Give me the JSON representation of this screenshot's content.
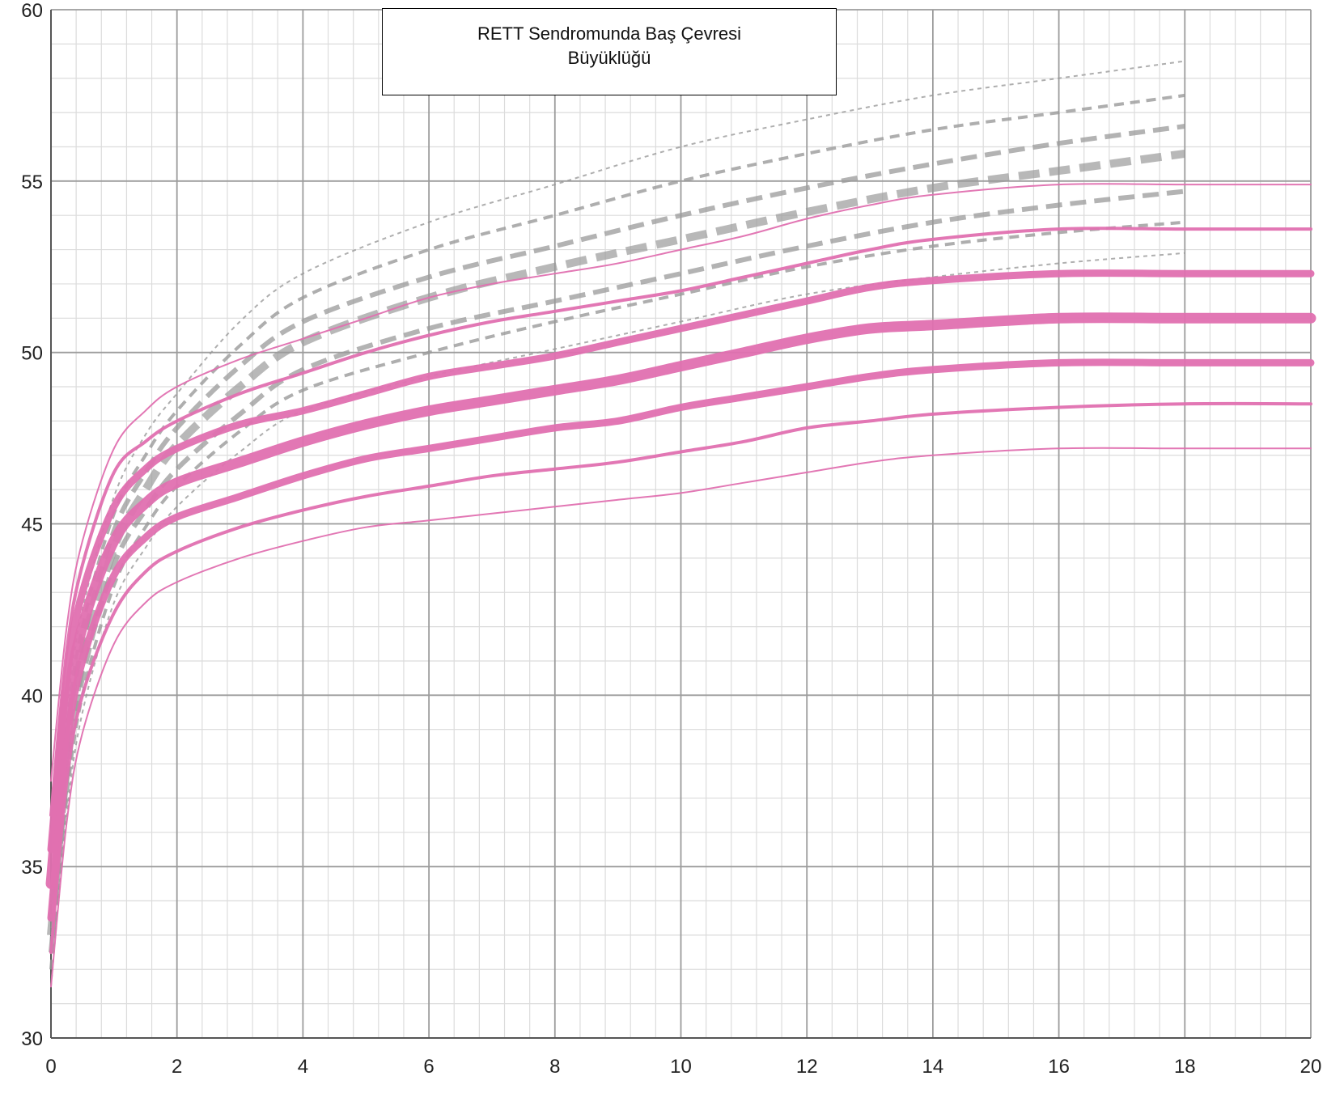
{
  "chart_data": {
    "type": "line",
    "title": "RETT Sendromunda Baş Çevresi\nBüyüklüğü",
    "xlabel": "",
    "ylabel": "",
    "xlim": [
      0,
      20
    ],
    "ylim": [
      30,
      60
    ],
    "x_ticks": [
      0,
      2,
      4,
      6,
      8,
      10,
      12,
      14,
      16,
      18,
      20
    ],
    "y_ticks": [
      30,
      35,
      40,
      45,
      50,
      55,
      60
    ],
    "grid": true,
    "legend": "none",
    "colors": {
      "rett": "#e070b0",
      "normal": "#9a9a9a",
      "grid_major": "#9c9c9c",
      "grid_minor": "#dcdcdc"
    },
    "series": [
      {
        "group": "normal",
        "width": 2,
        "dash": "5,5",
        "opacity": 0.8,
        "points": [
          [
            0,
            34.5
          ],
          [
            0.25,
            39.5
          ],
          [
            0.5,
            42.5
          ],
          [
            1,
            45.8
          ],
          [
            1.5,
            47.6
          ],
          [
            2,
            48.8
          ],
          [
            3,
            50.9
          ],
          [
            4,
            52.3
          ],
          [
            6,
            53.8
          ],
          [
            8,
            54.9
          ],
          [
            10,
            56
          ],
          [
            12,
            56.8
          ],
          [
            14,
            57.5
          ],
          [
            16,
            58
          ],
          [
            18,
            58.5
          ]
        ]
      },
      {
        "group": "normal",
        "width": 4,
        "dash": "12,8",
        "opacity": 0.8,
        "points": [
          [
            0,
            34
          ],
          [
            0.25,
            39
          ],
          [
            0.5,
            42
          ],
          [
            1,
            45.3
          ],
          [
            1.5,
            47
          ],
          [
            2,
            48.3
          ],
          [
            3,
            50.2
          ],
          [
            4,
            51.6
          ],
          [
            6,
            53
          ],
          [
            8,
            54
          ],
          [
            10,
            55
          ],
          [
            12,
            55.8
          ],
          [
            14,
            56.5
          ],
          [
            16,
            57
          ],
          [
            18,
            57.5
          ]
        ]
      },
      {
        "group": "normal",
        "width": 6,
        "dash": "20,10",
        "opacity": 0.75,
        "points": [
          [
            0,
            33.5
          ],
          [
            0.25,
            38.5
          ],
          [
            0.5,
            41.5
          ],
          [
            1,
            44.8
          ],
          [
            1.5,
            46.5
          ],
          [
            2,
            47.8
          ],
          [
            3,
            49.6
          ],
          [
            4,
            50.9
          ],
          [
            6,
            52.2
          ],
          [
            8,
            53.1
          ],
          [
            10,
            54
          ],
          [
            12,
            54.8
          ],
          [
            14,
            55.5
          ],
          [
            16,
            56.1
          ],
          [
            18,
            56.6
          ]
        ]
      },
      {
        "group": "normal",
        "width": 10,
        "dash": "26,12",
        "opacity": 0.7,
        "points": [
          [
            0,
            33
          ],
          [
            0.25,
            38
          ],
          [
            0.5,
            41
          ],
          [
            1,
            44.3
          ],
          [
            1.5,
            46
          ],
          [
            2,
            47.3
          ],
          [
            3,
            49
          ],
          [
            4,
            50.3
          ],
          [
            6,
            51.6
          ],
          [
            8,
            52.5
          ],
          [
            10,
            53.3
          ],
          [
            12,
            54.1
          ],
          [
            14,
            54.8
          ],
          [
            16,
            55.3
          ],
          [
            18,
            55.8
          ]
        ]
      },
      {
        "group": "normal",
        "width": 6,
        "dash": "20,10",
        "opacity": 0.75,
        "points": [
          [
            0,
            32.5
          ],
          [
            0.25,
            37.5
          ],
          [
            0.5,
            40.5
          ],
          [
            1,
            43.8
          ],
          [
            1.5,
            45.4
          ],
          [
            2,
            46.6
          ],
          [
            3,
            48.2
          ],
          [
            4,
            49.5
          ],
          [
            6,
            50.7
          ],
          [
            8,
            51.5
          ],
          [
            10,
            52.3
          ],
          [
            12,
            53.1
          ],
          [
            14,
            53.8
          ],
          [
            16,
            54.3
          ],
          [
            18,
            54.7
          ]
        ]
      },
      {
        "group": "normal",
        "width": 4,
        "dash": "12,8",
        "opacity": 0.8,
        "points": [
          [
            0,
            32
          ],
          [
            0.25,
            37
          ],
          [
            0.5,
            40
          ],
          [
            1,
            43.2
          ],
          [
            1.5,
            44.9
          ],
          [
            2,
            46.1
          ],
          [
            3,
            47.7
          ],
          [
            4,
            48.9
          ],
          [
            6,
            50
          ],
          [
            8,
            50.9
          ],
          [
            10,
            51.7
          ],
          [
            12,
            52.5
          ],
          [
            14,
            53.1
          ],
          [
            16,
            53.5
          ],
          [
            18,
            53.8
          ]
        ]
      },
      {
        "group": "normal",
        "width": 2,
        "dash": "5,5",
        "opacity": 0.8,
        "points": [
          [
            0,
            31.5
          ],
          [
            0.25,
            36.5
          ],
          [
            0.5,
            39.5
          ],
          [
            1,
            42.7
          ],
          [
            1.5,
            44.3
          ],
          [
            2,
            45.5
          ],
          [
            3,
            47.1
          ],
          [
            4,
            48.3
          ],
          [
            6,
            49.3
          ],
          [
            8,
            50.1
          ],
          [
            10,
            50.9
          ],
          [
            12,
            51.7
          ],
          [
            14,
            52.2
          ],
          [
            16,
            52.6
          ],
          [
            18,
            52.9
          ]
        ]
      },
      {
        "group": "rett",
        "width": 2,
        "opacity": 0.95,
        "points": [
          [
            0,
            37.5
          ],
          [
            0.25,
            42
          ],
          [
            0.5,
            44.5
          ],
          [
            1,
            47.2
          ],
          [
            1.5,
            48.3
          ],
          [
            2,
            49
          ],
          [
            3,
            49.8
          ],
          [
            4,
            50.4
          ],
          [
            5,
            51
          ],
          [
            6,
            51.6
          ],
          [
            7,
            52
          ],
          [
            8,
            52.3
          ],
          [
            9,
            52.6
          ],
          [
            10,
            53
          ],
          [
            11,
            53.4
          ],
          [
            12,
            53.9
          ],
          [
            13,
            54.3
          ],
          [
            14,
            54.6
          ],
          [
            16,
            54.9
          ],
          [
            18,
            54.9
          ],
          [
            20,
            54.9
          ]
        ]
      },
      {
        "group": "rett",
        "width": 4,
        "opacity": 0.95,
        "points": [
          [
            0,
            36.5
          ],
          [
            0.25,
            41.3
          ],
          [
            0.5,
            43.8
          ],
          [
            1,
            46.5
          ],
          [
            1.5,
            47.4
          ],
          [
            2,
            48
          ],
          [
            3,
            48.8
          ],
          [
            4,
            49.4
          ],
          [
            5,
            50
          ],
          [
            6,
            50.5
          ],
          [
            7,
            50.9
          ],
          [
            8,
            51.2
          ],
          [
            9,
            51.5
          ],
          [
            10,
            51.8
          ],
          [
            11,
            52.2
          ],
          [
            12,
            52.6
          ],
          [
            13,
            53
          ],
          [
            14,
            53.3
          ],
          [
            16,
            53.6
          ],
          [
            18,
            53.6
          ],
          [
            20,
            53.6
          ]
        ]
      },
      {
        "group": "rett",
        "width": 9,
        "opacity": 0.95,
        "points": [
          [
            0,
            35.5
          ],
          [
            0.25,
            40.5
          ],
          [
            0.5,
            43
          ],
          [
            1,
            45.5
          ],
          [
            1.5,
            46.6
          ],
          [
            2,
            47.2
          ],
          [
            3,
            47.9
          ],
          [
            4,
            48.3
          ],
          [
            5,
            48.8
          ],
          [
            6,
            49.3
          ],
          [
            7,
            49.6
          ],
          [
            8,
            49.9
          ],
          [
            9,
            50.3
          ],
          [
            10,
            50.7
          ],
          [
            11,
            51.1
          ],
          [
            12,
            51.5
          ],
          [
            13,
            51.9
          ],
          [
            14,
            52.1
          ],
          [
            16,
            52.3
          ],
          [
            18,
            52.3
          ],
          [
            20,
            52.3
          ]
        ]
      },
      {
        "group": "rett",
        "width": 13,
        "opacity": 0.95,
        "points": [
          [
            0,
            34.5
          ],
          [
            0.25,
            39.5
          ],
          [
            0.5,
            42
          ],
          [
            1,
            44.5
          ],
          [
            1.5,
            45.6
          ],
          [
            2,
            46.2
          ],
          [
            3,
            46.8
          ],
          [
            4,
            47.4
          ],
          [
            5,
            47.9
          ],
          [
            6,
            48.3
          ],
          [
            7,
            48.6
          ],
          [
            8,
            48.9
          ],
          [
            9,
            49.2
          ],
          [
            10,
            49.6
          ],
          [
            11,
            50
          ],
          [
            12,
            50.4
          ],
          [
            13,
            50.7
          ],
          [
            14,
            50.8
          ],
          [
            16,
            51
          ],
          [
            18,
            51
          ],
          [
            20,
            51
          ]
        ]
      },
      {
        "group": "rett",
        "width": 9,
        "opacity": 0.95,
        "points": [
          [
            0,
            33.5
          ],
          [
            0.25,
            38.5
          ],
          [
            0.5,
            41
          ],
          [
            1,
            43.5
          ],
          [
            1.5,
            44.6
          ],
          [
            2,
            45.2
          ],
          [
            3,
            45.8
          ],
          [
            4,
            46.4
          ],
          [
            5,
            46.9
          ],
          [
            6,
            47.2
          ],
          [
            7,
            47.5
          ],
          [
            8,
            47.8
          ],
          [
            9,
            48
          ],
          [
            10,
            48.4
          ],
          [
            11,
            48.7
          ],
          [
            12,
            49
          ],
          [
            13,
            49.3
          ],
          [
            14,
            49.5
          ],
          [
            16,
            49.7
          ],
          [
            18,
            49.7
          ],
          [
            20,
            49.7
          ]
        ]
      },
      {
        "group": "rett",
        "width": 4,
        "opacity": 0.95,
        "points": [
          [
            0,
            32.5
          ],
          [
            0.25,
            37.5
          ],
          [
            0.5,
            40
          ],
          [
            1,
            42.4
          ],
          [
            1.5,
            43.6
          ],
          [
            2,
            44.2
          ],
          [
            3,
            44.9
          ],
          [
            4,
            45.4
          ],
          [
            5,
            45.8
          ],
          [
            6,
            46.1
          ],
          [
            7,
            46.4
          ],
          [
            8,
            46.6
          ],
          [
            9,
            46.8
          ],
          [
            10,
            47.1
          ],
          [
            11,
            47.4
          ],
          [
            12,
            47.8
          ],
          [
            13,
            48
          ],
          [
            14,
            48.2
          ],
          [
            16,
            48.4
          ],
          [
            18,
            48.5
          ],
          [
            20,
            48.5
          ]
        ]
      },
      {
        "group": "rett",
        "width": 2,
        "opacity": 0.95,
        "points": [
          [
            0,
            31.5
          ],
          [
            0.25,
            36.3
          ],
          [
            0.5,
            38.9
          ],
          [
            1,
            41.5
          ],
          [
            1.5,
            42.7
          ],
          [
            2,
            43.3
          ],
          [
            3,
            44
          ],
          [
            4,
            44.5
          ],
          [
            5,
            44.9
          ],
          [
            6,
            45.1
          ],
          [
            7,
            45.3
          ],
          [
            8,
            45.5
          ],
          [
            9,
            45.7
          ],
          [
            10,
            45.9
          ],
          [
            11,
            46.2
          ],
          [
            12,
            46.5
          ],
          [
            13,
            46.8
          ],
          [
            14,
            47
          ],
          [
            16,
            47.2
          ],
          [
            18,
            47.2
          ],
          [
            20,
            47.2
          ]
        ]
      }
    ]
  }
}
